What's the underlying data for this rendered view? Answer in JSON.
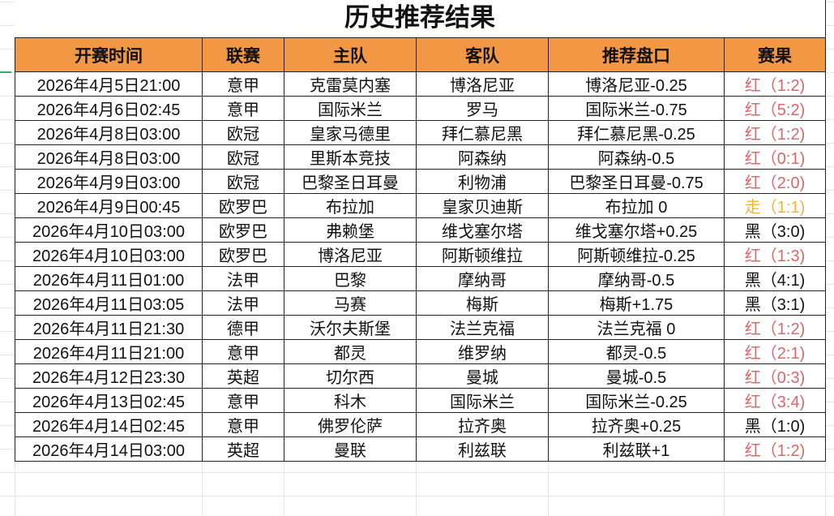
{
  "title": "历史推荐结果",
  "headers": [
    "开赛时间",
    "联赛",
    "主队",
    "客队",
    "推荐盘口",
    "赛果"
  ],
  "colors": {
    "header_bg": "#f29744",
    "red": "#e0656a",
    "yellow": "#f1b433",
    "black": "#111111"
  },
  "rows": [
    {
      "time": "2026年4月5日21:00",
      "league": "意甲",
      "home": "克雷莫内塞",
      "away": "博洛尼亚",
      "pick": "博洛尼亚-0.25",
      "result": "红（1:2)",
      "status": "red"
    },
    {
      "time": "2026年4月6日02:45",
      "league": "意甲",
      "home": "国际米兰",
      "away": "罗马",
      "pick": "国际米兰-0.75",
      "result": "红（5:2)",
      "status": "red"
    },
    {
      "time": "2026年4月8日03:00",
      "league": "欧冠",
      "home": "皇家马德里",
      "away": "拜仁慕尼黑",
      "pick": "拜仁慕尼黑-0.25",
      "result": "红（1:2)",
      "status": "red"
    },
    {
      "time": "2026年4月8日03:00",
      "league": "欧冠",
      "home": "里斯本竞技",
      "away": "阿森纳",
      "pick": "阿森纳-0.5",
      "result": "红（0:1)",
      "status": "red"
    },
    {
      "time": "2026年4月9日03:00",
      "league": "欧冠",
      "home": "巴黎圣日耳曼",
      "away": "利物浦",
      "pick": "巴黎圣日耳曼-0.75",
      "result": "红（2:0)",
      "status": "red"
    },
    {
      "time": "2026年4月9日00:45",
      "league": "欧罗巴",
      "home": "布拉加",
      "away": "皇家贝迪斯",
      "pick": "布拉加 0",
      "result": "走（1:1)",
      "status": "yellow"
    },
    {
      "time": "2026年4月10日03:00",
      "league": "欧罗巴",
      "home": "弗赖堡",
      "away": "维戈塞尔塔",
      "pick": "维戈塞尔塔+0.25",
      "result": "黑（3:0)",
      "status": "black"
    },
    {
      "time": "2026年4月10日03:00",
      "league": "欧罗巴",
      "home": "博洛尼亚",
      "away": "阿斯顿维拉",
      "pick": "阿斯顿维拉-0.25",
      "result": "红（1:3)",
      "status": "red"
    },
    {
      "time": "2026年4月11日01:00",
      "league": "法甲",
      "home": "巴黎",
      "away": "摩纳哥",
      "pick": "摩纳哥-0.5",
      "result": "黑（4:1)",
      "status": "black"
    },
    {
      "time": "2026年4月11日03:05",
      "league": "法甲",
      "home": "马赛",
      "away": "梅斯",
      "pick": "梅斯+1.75",
      "result": "黑（3:1)",
      "status": "black"
    },
    {
      "time": "2026年4月11日21:30",
      "league": "德甲",
      "home": "沃尔夫斯堡",
      "away": "法兰克福",
      "pick": "法兰克福 0",
      "result": "红（1:2)",
      "status": "red"
    },
    {
      "time": "2026年4月11日21:00",
      "league": "意甲",
      "home": "都灵",
      "away": "维罗纳",
      "pick": "都灵-0.5",
      "result": "红（2:1)",
      "status": "red"
    },
    {
      "time": "2026年4月12日23:30",
      "league": "英超",
      "home": "切尔西",
      "away": "曼城",
      "pick": "曼城-0.5",
      "result": "红（0:3)",
      "status": "red"
    },
    {
      "time": "2026年4月13日02:45",
      "league": "意甲",
      "home": "科木",
      "away": "国际米兰",
      "pick": "国际米兰-0.25",
      "result": "红（3:4)",
      "status": "red"
    },
    {
      "time": "2026年4月14日02:45",
      "league": "意甲",
      "home": "佛罗伦萨",
      "away": "拉齐奥",
      "pick": "拉齐奥+0.25",
      "result": "黑（1:0)",
      "status": "black"
    },
    {
      "time": "2026年4月14日03:00",
      "league": "英超",
      "home": "曼联",
      "away": "利兹联",
      "pick": "利兹联+1",
      "result": "红（1:2)",
      "status": "red"
    }
  ]
}
